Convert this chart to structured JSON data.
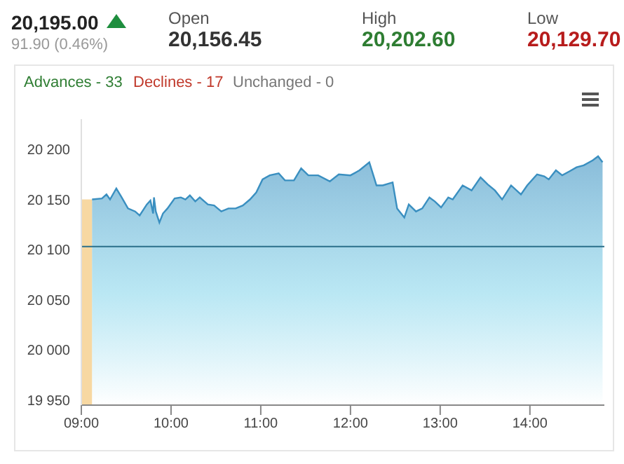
{
  "chart_data": {
    "type": "area",
    "title": "20,195.00",
    "subtitle": "91.90 (0.46%)",
    "annotations": [
      "Open",
      "20,156.45",
      "High",
      "20,202.60",
      "Low",
      "20,129.70",
      "Advances - 33",
      "Declines - 17",
      "Unchanged - 0"
    ],
    "series": [
      {
        "color": "#3a8fc0",
        "x": [
          9.12,
          9.23,
          9.28,
          9.32,
          9.39,
          9.45,
          9.52,
          9.6,
          9.65,
          9.73,
          9.77,
          9.8,
          9.81,
          9.83,
          9.87,
          9.91,
          9.96,
          10.04,
          10.11,
          10.16,
          10.21,
          10.27,
          10.32,
          10.41,
          10.48,
          10.56,
          10.64,
          10.72,
          10.8,
          10.88,
          10.95,
          11.02,
          11.1,
          11.2,
          11.27,
          11.37,
          11.45,
          11.53,
          11.64,
          11.77,
          11.87,
          12.0,
          12.1,
          12.21,
          12.29,
          12.36,
          12.47,
          12.52,
          12.6,
          12.65,
          12.73,
          12.8,
          12.88,
          12.94,
          13.01,
          13.09,
          13.14,
          13.25,
          13.35,
          13.45,
          13.53,
          13.61,
          13.69,
          13.79,
          13.9,
          13.97,
          14.08,
          14.16,
          14.21,
          14.29,
          14.36,
          14.44,
          14.52,
          14.6,
          14.7,
          14.76,
          14.81
        ],
        "values": [
          20150,
          20151,
          20155,
          20150,
          20161,
          20152,
          20141,
          20138,
          20134,
          20145,
          20149,
          20136,
          20152,
          20138,
          20127,
          20136,
          20141,
          20151,
          20152,
          20150,
          20154,
          20148,
          20152,
          20145,
          20144,
          20138,
          20141,
          20141,
          20144,
          20150,
          20157,
          20170,
          20174,
          20176,
          20169,
          20169,
          20181,
          20174,
          20174,
          20168,
          20175,
          20174,
          20179,
          20187,
          20164,
          20164,
          20167,
          20141,
          20132,
          20145,
          20138,
          20141,
          20152,
          20148,
          20142,
          20152,
          20150,
          20164,
          20159,
          20172,
          20165,
          20159,
          20150,
          20164,
          20155,
          20164,
          20175,
          20173,
          20170,
          20179,
          20174,
          20178,
          20182,
          20184,
          20189,
          20193,
          20187
        ]
      }
    ],
    "xlim": [
      9,
      14.83
    ],
    "xticks": [
      {
        "value": 9,
        "label": "09:00"
      },
      {
        "value": 10,
        "label": "10:00"
      },
      {
        "value": 11,
        "label": "11:00"
      },
      {
        "value": 12,
        "label": "12:00"
      },
      {
        "value": 13,
        "label": "13:00"
      },
      {
        "value": 14,
        "label": "14:00"
      }
    ],
    "ylim": [
      19945,
      20230
    ],
    "yticks": [
      {
        "value": 19950,
        "label": "19 950"
      },
      {
        "value": 20000,
        "label": "20 000"
      },
      {
        "value": 20050,
        "label": "20 050"
      },
      {
        "value": 20100,
        "label": "20 100"
      },
      {
        "value": 20150,
        "label": "20 150"
      },
      {
        "value": 20200,
        "label": "20 200"
      }
    ],
    "ref_lines": [
      {
        "axis": "y",
        "value": 20103.1,
        "color": "#2a6f8a"
      }
    ],
    "bands": [
      {
        "axis": "x",
        "from": 9,
        "to": 9.12,
        "color": "#f3c77a"
      }
    ],
    "legend": false
  }
}
